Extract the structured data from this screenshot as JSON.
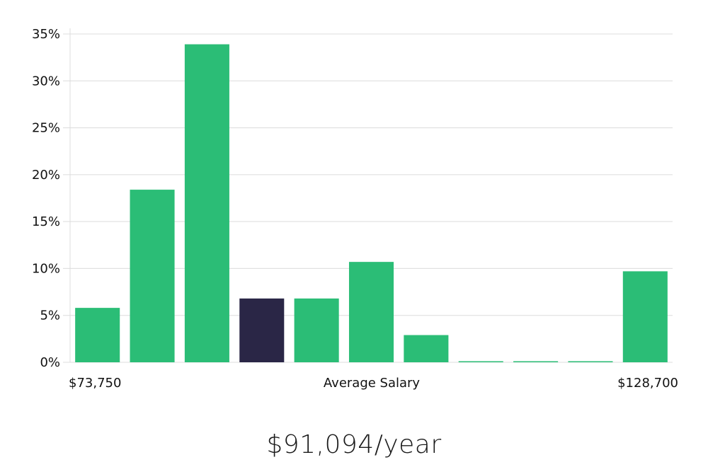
{
  "chart_data": {
    "type": "bar",
    "title": "",
    "xlabel": "Average Salary",
    "ylabel": "",
    "ylim": [
      0,
      35
    ],
    "yticks": [
      0,
      5,
      10,
      15,
      20,
      25,
      30,
      35
    ],
    "ytick_labels": [
      "0%",
      "5%",
      "10%",
      "15%",
      "20%",
      "25%",
      "30%",
      "35%"
    ],
    "x_range_labels": {
      "min": "$73,750",
      "max": "$128,700"
    },
    "values": [
      5.8,
      18.4,
      33.9,
      6.8,
      6.8,
      10.7,
      2.9,
      0.1,
      0.1,
      0.1,
      9.7
    ],
    "highlight_index": 3,
    "grid": true,
    "colors": {
      "bar": "#2bbd76",
      "highlight": "#2a2646",
      "grid": "#dcdcdc"
    }
  },
  "salary": {
    "value": "$91,094/year"
  }
}
